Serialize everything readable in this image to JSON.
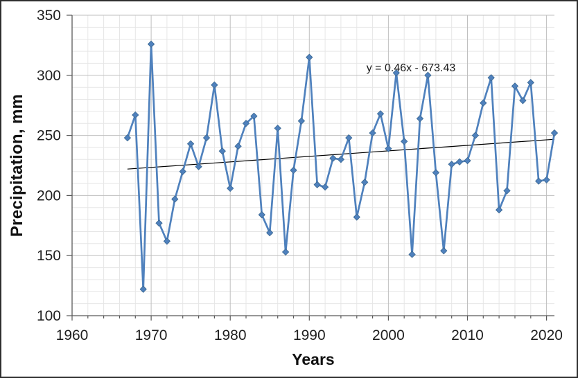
{
  "chart_data": {
    "type": "line",
    "title": "",
    "xlabel": "Years",
    "ylabel": "Precipitation, mm",
    "x": [
      1967,
      1968,
      1969,
      1970,
      1971,
      1972,
      1973,
      1974,
      1975,
      1976,
      1977,
      1978,
      1979,
      1980,
      1981,
      1982,
      1983,
      1984,
      1985,
      1986,
      1987,
      1988,
      1989,
      1990,
      1991,
      1992,
      1993,
      1994,
      1995,
      1996,
      1997,
      1998,
      1999,
      2000,
      2001,
      2002,
      2003,
      2004,
      2005,
      2006,
      2007,
      2008,
      2009,
      2010,
      2011,
      2012,
      2013,
      2014,
      2015,
      2016,
      2017,
      2018,
      2019,
      2020,
      2021
    ],
    "series": [
      {
        "color": "#4F81BD",
        "marker": "diamond",
        "values": [
          248,
          267,
          122,
          326,
          177,
          162,
          197,
          220,
          243,
          224,
          248,
          292,
          237,
          206,
          241,
          260,
          266,
          184,
          169,
          256,
          153,
          221,
          262,
          315,
          209,
          207,
          231,
          230,
          248,
          182,
          211,
          252,
          268,
          239,
          302,
          245,
          151,
          264,
          300,
          219,
          154,
          226,
          228,
          229,
          250,
          277,
          298,
          188,
          204,
          291,
          279,
          294,
          212,
          213,
          252
        ]
      }
    ],
    "trendline": {
      "label": "y = 0.46x - 673.43",
      "color": "#000000",
      "x1": 1967,
      "y1": 222,
      "x2": 2021,
      "y2": 246.8
    },
    "xlim": [
      1960,
      2021
    ],
    "ylim": [
      100,
      350
    ],
    "x_ticks": [
      1960,
      1970,
      1980,
      1990,
      2000,
      2010,
      2020
    ],
    "y_ticks": [
      100,
      150,
      200,
      250,
      300,
      350
    ],
    "x_minor_step": 2,
    "y_minor_step": 10,
    "grid": {
      "major_color": "#BFBFBF",
      "minor_color": "#E6E6E6"
    },
    "axis_color": "#595959",
    "tick_label_color": "#1F1F1F",
    "legend": "none"
  }
}
